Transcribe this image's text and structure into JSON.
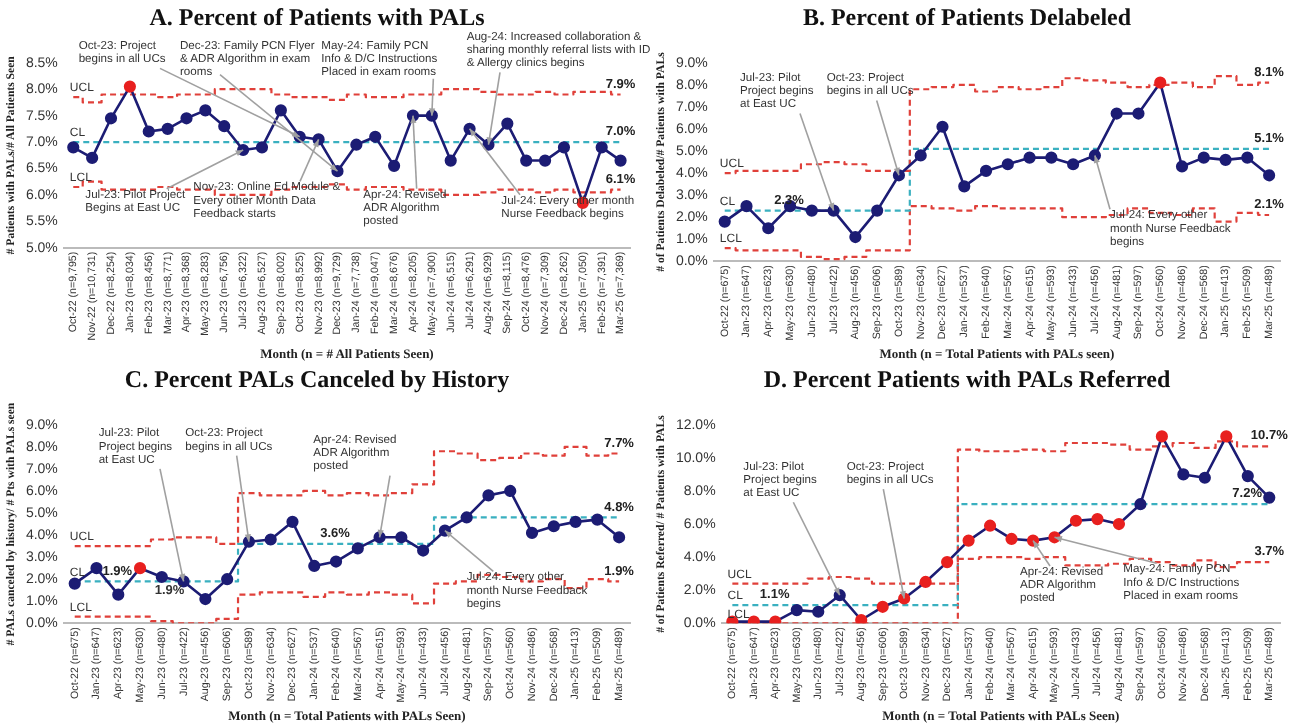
{
  "chart_data": [
    {
      "type": "line",
      "title": "A. Percent of Patients with PALs",
      "xlabel": "Month (n = # All Patients Seen)",
      "ylabel": "# Patients with PALs/# All Patients Seen",
      "legend": false,
      "grid": false,
      "categories": [
        "Oct-22 (n=9,795)",
        "Nov-22 (n=10,731)",
        "Dec-22 (n=8,254)",
        "Jan-23 (n=8,034)",
        "Feb-23 (n=8,456)",
        "Mar-23 (n=8,771)",
        "Apr-23 (n=8,368)",
        "May-23 (n=8,283)",
        "Jun-23 (n=6,756)",
        "Jul-23 (n=6,322)",
        "Aug-23 (n=6,527)",
        "Sep-23 (n=8,002)",
        "Oct-23 (n=8,525)",
        "Nov-23 (n=8,992)",
        "Dec-23 (n=9,729)",
        "Jan-24 (n=7,738)",
        "Feb-24 (n=9,047)",
        "Mar-24 (n=8,676)",
        "Apr-24 (n=8,205)",
        "May-24 (n=7,900)",
        "Jun-24 (n=6,515)",
        "Jul-24 (n=6,291)",
        "Aug-24 (n=6,929)",
        "Sep-24 (n=8,115)",
        "Oct-24 (n=8,476)",
        "Nov-24 (n=7,309)",
        "Dec-24 (n=8,262)",
        "Jan-25 (n=7,050)",
        "Feb-25 (n=7,391)",
        "Mar-25 (n=7,369)"
      ],
      "ylim": [
        5,
        8.5
      ],
      "yticks": [
        {
          "value": 5,
          "label": "5.0%"
        },
        {
          "value": 5.5,
          "label": "5.5%"
        },
        {
          "value": 6,
          "label": "6.0%"
        },
        {
          "value": 6.5,
          "label": "6.5%"
        },
        {
          "value": 7,
          "label": "7.0%"
        },
        {
          "value": 7.5,
          "label": "7.5%"
        },
        {
          "value": 8,
          "label": "8.0%"
        },
        {
          "value": 8.5,
          "label": "8.5%"
        }
      ],
      "series": [
        {
          "color": "#1c1c74",
          "marker": "circle",
          "values": [
            6.9,
            6.7,
            7.45,
            8.05,
            7.2,
            7.25,
            7.45,
            7.6,
            7.3,
            6.85,
            6.9,
            7.6,
            7.1,
            7.05,
            6.45,
            6.95,
            7.1,
            6.55,
            7.5,
            7.5,
            6.65,
            7.25,
            6.95,
            7.35,
            6.65,
            6.65,
            6.9,
            5.85,
            6.9,
            6.65
          ],
          "colors": [
            "#1c1c74",
            "#1c1c74",
            "#1c1c74",
            "#e8201f",
            "#1c1c74",
            "#1c1c74",
            "#1c1c74",
            "#1c1c74",
            "#1c1c74",
            "#1c1c74",
            "#1c1c74",
            "#1c1c74",
            "#1c1c74",
            "#1c1c74",
            "#1c1c74",
            "#1c1c74",
            "#1c1c74",
            "#1c1c74",
            "#1c1c74",
            "#1c1c74",
            "#1c1c74",
            "#1c1c74",
            "#1c1c74",
            "#1c1c74",
            "#1c1c74",
            "#1c1c74",
            "#1c1c74",
            "#e8201f",
            "#1c1c74",
            "#1c1c74"
          ]
        },
        {
          "type": "step",
          "name": "UCL",
          "color": "#e0403a",
          "line_style": "dashed",
          "values": [
            7.85,
            7.75,
            7.9,
            7.9,
            7.9,
            7.85,
            7.9,
            7.9,
            8.0,
            8.0,
            8.0,
            7.9,
            7.85,
            7.85,
            7.8,
            7.9,
            7.85,
            7.85,
            7.9,
            7.9,
            8.0,
            8.0,
            7.95,
            7.9,
            7.9,
            7.95,
            7.9,
            7.95,
            7.95,
            7.9
          ],
          "value_labels": [
            null,
            null,
            null,
            null,
            null,
            null,
            null,
            null,
            null,
            null,
            null,
            null,
            null,
            null,
            null,
            null,
            null,
            null,
            null,
            null,
            null,
            null,
            null,
            null,
            null,
            null,
            null,
            null,
            null,
            "7.9%"
          ]
        },
        {
          "type": "step",
          "name": "CL",
          "color": "#3ab0c0",
          "line_style": "dashed",
          "values": [
            7.0,
            7.0,
            7.0,
            7.0,
            7.0,
            7.0,
            7.0,
            7.0,
            7.0,
            7.0,
            7.0,
            7.0,
            7.0,
            7.0,
            7.0,
            7.0,
            7.0,
            7.0,
            7.0,
            7.0,
            7.0,
            7.0,
            7.0,
            7.0,
            7.0,
            7.0,
            7.0,
            7.0,
            7.0,
            7.0
          ],
          "value_labels": [
            null,
            null,
            null,
            null,
            null,
            null,
            null,
            null,
            null,
            null,
            null,
            null,
            null,
            null,
            null,
            null,
            null,
            null,
            null,
            null,
            null,
            null,
            null,
            null,
            null,
            null,
            null,
            null,
            null,
            "7.0%"
          ]
        },
        {
          "type": "step",
          "name": "LCL",
          "color": "#e0403a",
          "line_style": "dashed",
          "values": [
            6.15,
            6.25,
            6.1,
            6.1,
            6.1,
            6.15,
            6.1,
            6.1,
            6.0,
            6.0,
            6.0,
            6.1,
            6.15,
            6.15,
            6.2,
            6.1,
            6.15,
            6.15,
            6.1,
            6.1,
            6.0,
            6.0,
            6.05,
            6.1,
            6.1,
            6.05,
            6.1,
            6.05,
            6.05,
            6.1
          ],
          "value_labels": [
            null,
            null,
            null,
            null,
            null,
            null,
            null,
            null,
            null,
            null,
            null,
            null,
            null,
            null,
            null,
            null,
            null,
            null,
            null,
            null,
            null,
            null,
            null,
            null,
            null,
            null,
            null,
            null,
            null,
            "6.1%"
          ]
        }
      ],
      "annotations": [
        {
          "text": "Oct-23: Project begins in all UCs",
          "x": "Oct-23 (n=8,525)",
          "y": 7.1
        },
        {
          "text": "Dec-23: Family PCN Flyer & ADR Algorithm in exam rooms",
          "x": "Dec-23 (n=9,729)",
          "y": 6.45
        },
        {
          "text": "May-24: Family PCN Info & D/C Instructions Placed in exam rooms",
          "x": "May-24 (n=7,900)",
          "y": 7.5
        },
        {
          "text": "Aug-24: Increased collaboration & sharing monthly referral lists with ID & Allergy clinics begins",
          "x": "Aug-24 (n=6,929)",
          "y": 6.95
        },
        {
          "text": "Jul-23: Pilot Project Begins at East UC",
          "x": "Jul-23 (n=6,322)",
          "y": 6.85
        },
        {
          "text": "Nov-23: Online Ed Module & Every other Month Data Feedback starts",
          "x": "Nov-23 (n=8,992)",
          "y": 7.05
        },
        {
          "text": "Apr-24: Revised ADR Algorithm posted",
          "x": "Apr-24 (n=8,205)",
          "y": 7.5
        },
        {
          "text": "Jul-24: Every other month Nurse Feedback begins",
          "x": "Jul-24 (n=6,291)",
          "y": 7.25
        }
      ]
    },
    {
      "type": "line",
      "title": "B. Percent of Patients Delabeled",
      "xlabel": "Month (n = Total Patients with PALs seen)",
      "ylabel": "# of Patients Delabeled/# Patients with PALs",
      "legend": false,
      "grid": false,
      "categories": [
        "Oct-22 (n=675)",
        "Jan-23 (n=647)",
        "Apr-23 (n=623)",
        "May-23 (n=630)",
        "Jun-23 (n=480)",
        "Jul-23 (n=422)",
        "Aug-23 (n=456)",
        "Sep-23 (n=606)",
        "Oct-23 (n=589)",
        "Nov-23 (n=634)",
        "Dec-23 (n=627)",
        "Jan-24 (n=537)",
        "Feb-24 (n=640)",
        "Mar-24 (n=567)",
        "Apr-24 (n=615)",
        "May-24 (n=593)",
        "Jun-24 (n=433)",
        "Jul-24 (n=456)",
        "Aug-24 (n=481)",
        "Sep-24 (n=597)",
        "Oct-24 (n=560)",
        "Nov-24 (n=486)",
        "Dec-24 (n=568)",
        "Jan-25 (n=413)",
        "Feb-25 (n=509)",
        "Mar-25 (n=489)"
      ],
      "ylim": [
        0,
        9
      ],
      "yticks": [
        {
          "value": 0,
          "label": "0.0%"
        },
        {
          "value": 1,
          "label": "1.0%"
        },
        {
          "value": 2,
          "label": "2.0%"
        },
        {
          "value": 3,
          "label": "3.0%"
        },
        {
          "value": 4,
          "label": "4.0%"
        },
        {
          "value": 5,
          "label": "5.0%"
        },
        {
          "value": 6,
          "label": "6.0%"
        },
        {
          "value": 7,
          "label": "7.0%"
        },
        {
          "value": 8,
          "label": "8.0%"
        },
        {
          "value": 9,
          "label": "9.0%"
        }
      ],
      "series": [
        {
          "color": "#1c1c74",
          "marker": "circle",
          "values": [
            1.8,
            2.5,
            1.5,
            2.5,
            2.3,
            2.3,
            1.1,
            2.3,
            3.9,
            4.8,
            6.1,
            3.4,
            4.1,
            4.4,
            4.7,
            4.7,
            4.4,
            4.8,
            6.7,
            6.7,
            8.1,
            4.3,
            4.7,
            4.6,
            4.7,
            3.9
          ],
          "colors": [
            "#1c1c74",
            "#1c1c74",
            "#1c1c74",
            "#1c1c74",
            "#1c1c74",
            "#1c1c74",
            "#1c1c74",
            "#1c1c74",
            "#1c1c74",
            "#1c1c74",
            "#1c1c74",
            "#1c1c74",
            "#1c1c74",
            "#1c1c74",
            "#1c1c74",
            "#1c1c74",
            "#1c1c74",
            "#1c1c74",
            "#1c1c74",
            "#1c1c74",
            "#e8201f",
            "#1c1c74",
            "#1c1c74",
            "#1c1c74",
            "#1c1c74",
            "#1c1c74"
          ]
        },
        {
          "type": "step",
          "name": "UCL",
          "color": "#e0403a",
          "line_style": "dashed",
          "values": [
            4.0,
            4.1,
            4.1,
            4.1,
            4.4,
            4.5,
            4.4,
            4.1,
            4.1,
            7.8,
            7.9,
            8.0,
            7.7,
            7.9,
            7.8,
            7.9,
            8.3,
            8.2,
            8.1,
            7.9,
            8.0,
            8.1,
            7.9,
            8.4,
            8.0,
            8.1
          ],
          "value_labels": [
            null,
            null,
            null,
            null,
            null,
            null,
            null,
            null,
            null,
            null,
            null,
            null,
            null,
            null,
            null,
            null,
            null,
            null,
            null,
            null,
            null,
            null,
            null,
            null,
            null,
            "8.1%"
          ]
        },
        {
          "type": "step",
          "name": "CL",
          "color": "#3ab0c0",
          "line_style": "dashed",
          "values": [
            2.3,
            2.3,
            2.3,
            2.3,
            2.3,
            2.3,
            2.3,
            2.3,
            2.3,
            5.1,
            5.1,
            5.1,
            5.1,
            5.1,
            5.1,
            5.1,
            5.1,
            5.1,
            5.1,
            5.1,
            5.1,
            5.1,
            5.1,
            5.1,
            5.1,
            5.1
          ],
          "value_labels": [
            null,
            null,
            "2.3%",
            null,
            null,
            null,
            null,
            null,
            null,
            null,
            null,
            null,
            null,
            null,
            null,
            null,
            null,
            null,
            null,
            null,
            null,
            null,
            null,
            null,
            null,
            "5.1%"
          ]
        },
        {
          "type": "step",
          "name": "LCL",
          "color": "#e0403a",
          "line_style": "dashed",
          "values": [
            0.6,
            0.5,
            0.5,
            0.5,
            0.2,
            0.1,
            0.2,
            0.5,
            0.5,
            2.5,
            2.4,
            2.3,
            2.5,
            2.4,
            2.4,
            2.4,
            2.0,
            2.0,
            2.1,
            2.4,
            2.2,
            2.1,
            2.4,
            1.8,
            2.2,
            2.1
          ],
          "value_labels": [
            null,
            null,
            null,
            null,
            null,
            null,
            null,
            null,
            null,
            null,
            null,
            null,
            null,
            null,
            null,
            null,
            null,
            null,
            null,
            null,
            null,
            null,
            null,
            null,
            null,
            "2.1%"
          ]
        }
      ],
      "annotations": [
        {
          "text": "Jul-23: Pilot Project begins at East UC",
          "x": "Jul-23 (n=422)",
          "y": 2.3
        },
        {
          "text": "Oct-23: Project begins in all UCs",
          "x": "Oct-23 (n=589)",
          "y": 3.9
        },
        {
          "text": "Jul-24: Every other month Nurse Feedback begins",
          "x": "Jul-24 (n=456)",
          "y": 4.8
        }
      ]
    },
    {
      "type": "line",
      "title": "C. Percent PALs Canceled by History",
      "xlabel": "Month (n = Total Patients with PALs Seen)",
      "ylabel": "# PALs canceled by history/ # Pts with PALs seen",
      "legend": false,
      "grid": false,
      "categories": [
        "Oct-22 (n=675)",
        "Jan-23 (n=647)",
        "Apr-23 (n=623)",
        "May-23 (n=630)",
        "Jun-23 (n=480)",
        "Jul-23 (n=422)",
        "Aug-23 (n=456)",
        "Sep-23 (n=606)",
        "Oct-23 (n=589)",
        "Nov-23 (n=634)",
        "Dec-23 (n=627)",
        "Jan-24 (n=537)",
        "Feb-24 (n=640)",
        "Mar-24 (n=567)",
        "Apr-24 (n=615)",
        "May-24 (n=593)",
        "Jun-24 (n=433)",
        "Jul-24 (n=456)",
        "Aug-24 (n=481)",
        "Sep-24 (n=597)",
        "Oct-24 (n=560)",
        "Nov-24 (n=486)",
        "Dec-24 (n=568)",
        "Jan-25 (n=413)",
        "Feb-25 (n=509)",
        "Mar-25 (n=489)"
      ],
      "ylim": [
        0,
        9
      ],
      "yticks": [
        {
          "value": 0,
          "label": "0.0%"
        },
        {
          "value": 1,
          "label": "1.0%"
        },
        {
          "value": 2,
          "label": "2.0%"
        },
        {
          "value": 3,
          "label": "3.0%"
        },
        {
          "value": 4,
          "label": "4.0%"
        },
        {
          "value": 5,
          "label": "5.0%"
        },
        {
          "value": 6,
          "label": "6.0%"
        },
        {
          "value": 7,
          "label": "7.0%"
        },
        {
          "value": 8,
          "label": "8.0%"
        },
        {
          "value": 9,
          "label": "9.0%"
        }
      ],
      "series": [
        {
          "color": "#1c1c74",
          "marker": "circle",
          "values": [
            1.8,
            2.5,
            1.3,
            2.5,
            2.1,
            1.9,
            1.1,
            2.0,
            3.7,
            3.8,
            4.6,
            2.6,
            2.8,
            3.4,
            3.9,
            3.9,
            3.3,
            4.2,
            4.8,
            5.8,
            6.0,
            4.1,
            4.4,
            4.6,
            4.7,
            3.9
          ],
          "colors": [
            "#1c1c74",
            "#1c1c74",
            "#1c1c74",
            "#e8201f",
            "#1c1c74",
            "#1c1c74",
            "#1c1c74",
            "#1c1c74",
            "#1c1c74",
            "#1c1c74",
            "#1c1c74",
            "#1c1c74",
            "#1c1c74",
            "#1c1c74",
            "#1c1c74",
            "#1c1c74",
            "#1c1c74",
            "#1c1c74",
            "#1c1c74",
            "#1c1c74",
            "#1c1c74",
            "#1c1c74",
            "#1c1c74",
            "#1c1c74",
            "#1c1c74",
            "#1c1c74"
          ]
        },
        {
          "type": "step",
          "name": "UCL",
          "color": "#e0403a",
          "line_style": "dashed",
          "values": [
            3.5,
            3.5,
            3.5,
            3.5,
            3.8,
            3.9,
            3.9,
            3.6,
            5.9,
            5.8,
            5.8,
            6.0,
            5.8,
            5.9,
            5.8,
            5.9,
            6.3,
            7.8,
            7.7,
            7.4,
            7.5,
            7.7,
            7.6,
            8.0,
            7.6,
            7.7
          ],
          "value_labels": [
            null,
            null,
            null,
            null,
            null,
            null,
            null,
            null,
            null,
            null,
            null,
            null,
            null,
            null,
            null,
            null,
            null,
            null,
            null,
            null,
            null,
            null,
            null,
            null,
            null,
            "7.7%"
          ]
        },
        {
          "type": "step",
          "name": "CL",
          "color": "#3ab0c0",
          "line_style": "dashed",
          "values": [
            1.9,
            1.9,
            1.9,
            1.9,
            1.9,
            1.9,
            1.9,
            1.9,
            3.6,
            3.6,
            3.6,
            3.6,
            3.6,
            3.6,
            3.6,
            3.6,
            3.6,
            4.8,
            4.8,
            4.8,
            4.8,
            4.8,
            4.8,
            4.8,
            4.8,
            4.8
          ],
          "value_labels": [
            null,
            "1.9%",
            null,
            null,
            null,
            null,
            null,
            null,
            null,
            null,
            null,
            "3.6%",
            null,
            null,
            null,
            null,
            null,
            null,
            null,
            null,
            null,
            null,
            null,
            null,
            null,
            "4.8%"
          ]
        },
        {
          "type": "step",
          "name": "LCL",
          "color": "#e0403a",
          "line_style": "dashed",
          "values": [
            0.3,
            0.3,
            0.3,
            0.3,
            0.1,
            0.0,
            0.0,
            0.2,
            1.3,
            1.4,
            1.4,
            1.2,
            1.4,
            1.3,
            1.4,
            1.3,
            0.9,
            1.8,
            1.9,
            2.2,
            2.1,
            1.9,
            2.0,
            1.6,
            2.0,
            1.9
          ],
          "value_labels": [
            null,
            null,
            null,
            null,
            null,
            null,
            null,
            null,
            null,
            null,
            null,
            null,
            null,
            null,
            null,
            null,
            null,
            null,
            null,
            null,
            null,
            null,
            null,
            null,
            null,
            "1.9%"
          ]
        }
      ],
      "annotations": [
        {
          "text": "Jul-23: Pilot Project begins at East UC",
          "x": "Jul-23 (n=422)",
          "y": 1.9
        },
        {
          "text": "Oct-23: Project begins in all UCs",
          "x": "Oct-23 (n=589)",
          "y": 3.7
        },
        {
          "text": "Apr-24: Revised ADR Algorithm posted",
          "x": "Apr-24 (n=615)",
          "y": 3.9
        },
        {
          "text": "Jul-24: Every other month Nurse Feedback begins",
          "x": "Jul-24 (n=456)",
          "y": 4.2
        },
        "1.9%"
      ]
    },
    {
      "type": "line",
      "title": "D. Percent Patients with PALs Referred",
      "xlabel": "Month (n = Total Patients with PALs Seen)",
      "ylabel": "# of Patients Referred/ # Patients with PALs",
      "legend": false,
      "grid": false,
      "categories": [
        "Oct-22 (n=675)",
        "Jan-23 (n=647)",
        "Apr-23 (n=623)",
        "May-23 (n=630)",
        "Jun-23 (n=480)",
        "Jul-23 (n=422)",
        "Aug-23 (n=456)",
        "Sep-23 (n=606)",
        "Oct-23 (n=589)",
        "Nov-23 (n=634)",
        "Dec-23 (n=627)",
        "Jan-24 (n=537)",
        "Feb-24 (n=640)",
        "Mar-24 (n=567)",
        "Apr-24 (n=615)",
        "May-24 (n=593)",
        "Jun-24 (n=433)",
        "Jul-24 (n=456)",
        "Aug-24 (n=481)",
        "Sep-24 (n=597)",
        "Oct-24 (n=560)",
        "Nov-24 (n=486)",
        "Dec-24 (n=568)",
        "Jan-25 (n=413)",
        "Feb-25 (n=509)",
        "Mar-25 (n=489)"
      ],
      "ylim": [
        0,
        12
      ],
      "yticks": [
        {
          "value": 0,
          "label": "0.0%"
        },
        {
          "value": 2,
          "label": "2.0%"
        },
        {
          "value": 4,
          "label": "4.0%"
        },
        {
          "value": 6,
          "label": "6.0%"
        },
        {
          "value": 8,
          "label": "8.0%"
        },
        {
          "value": 10,
          "label": "10.0%"
        },
        {
          "value": 12,
          "label": "12.0%"
        }
      ],
      "series": [
        {
          "color": "#1c1c74",
          "marker": "circle",
          "values": [
            0.1,
            0.1,
            0.1,
            0.8,
            0.7,
            1.7,
            0.2,
            1.0,
            1.5,
            2.5,
            3.7,
            5.0,
            5.9,
            5.1,
            5.0,
            5.2,
            6.2,
            6.3,
            6.0,
            7.2,
            11.3,
            9.0,
            8.8,
            11.3,
            8.9,
            7.6
          ],
          "colors": [
            "#e8201f",
            "#e8201f",
            "#e8201f",
            "#1c1c74",
            "#1c1c74",
            "#1c1c74",
            "#e8201f",
            "#e8201f",
            "#e8201f",
            "#e8201f",
            "#e8201f",
            "#e8201f",
            "#e8201f",
            "#e8201f",
            "#e8201f",
            "#e8201f",
            "#e8201f",
            "#e8201f",
            "#e8201f",
            "#1c1c74",
            "#e8201f",
            "#1c1c74",
            "#1c1c74",
            "#e8201f",
            "#1c1c74",
            "#1c1c74"
          ]
        },
        {
          "type": "step",
          "name": "UCL",
          "color": "#e0403a",
          "line_style": "dashed",
          "values": [
            2.4,
            2.4,
            2.4,
            2.4,
            2.7,
            2.8,
            2.7,
            2.4,
            2.4,
            2.4,
            2.4,
            10.5,
            10.4,
            10.4,
            10.5,
            10.4,
            10.9,
            10.9,
            10.8,
            10.5,
            10.7,
            10.9,
            10.6,
            11.0,
            10.7,
            10.7
          ],
          "value_labels": [
            null,
            null,
            null,
            null,
            null,
            null,
            null,
            null,
            null,
            null,
            null,
            null,
            null,
            null,
            null,
            null,
            null,
            null,
            null,
            null,
            null,
            null,
            null,
            null,
            null,
            "10.7%"
          ]
        },
        {
          "type": "step",
          "name": "CL",
          "color": "#3ab0c0",
          "line_style": "dashed",
          "values": [
            1.1,
            1.1,
            1.1,
            1.1,
            1.1,
            1.1,
            1.1,
            1.1,
            1.1,
            1.1,
            1.1,
            7.2,
            7.2,
            7.2,
            7.2,
            7.2,
            7.2,
            7.2,
            7.2,
            7.2,
            7.2,
            7.2,
            7.2,
            7.2,
            7.2,
            7.2
          ],
          "value_labels": [
            null,
            "1.1%",
            null,
            null,
            null,
            null,
            null,
            null,
            null,
            null,
            null,
            null,
            null,
            null,
            null,
            null,
            null,
            null,
            null,
            null,
            null,
            null,
            null,
            "7.2%",
            null,
            null
          ]
        },
        {
          "type": "step",
          "name": "LCL",
          "color": "#e0403a",
          "line_style": "dashed",
          "values": [
            0,
            0,
            0,
            0,
            0,
            0,
            0,
            0,
            0,
            0,
            0,
            3.9,
            4.0,
            4.0,
            3.9,
            4.0,
            3.5,
            3.5,
            3.6,
            3.9,
            3.7,
            3.5,
            3.8,
            3.4,
            3.7,
            3.7
          ],
          "value_labels": [
            null,
            null,
            null,
            null,
            null,
            null,
            null,
            null,
            null,
            null,
            null,
            null,
            null,
            null,
            null,
            null,
            null,
            null,
            null,
            null,
            null,
            null,
            null,
            null,
            null,
            "3.7%"
          ]
        }
      ],
      "annotations": [
        {
          "text": "Jul-23: Pilot Project begins at East UC",
          "x": "Jul-23 (n=422)",
          "y": 1.7
        },
        {
          "text": "Oct-23: Project begins in all UCs",
          "x": "Oct-23 (n=589)",
          "y": 1.5
        },
        {
          "text": "Apr-24: Revised ADR Algorithm posted",
          "x": "Apr-24 (n=615)",
          "y": 5.0
        },
        {
          "text": "May-24: Family PCN Info & D/C Instructions Placed in exam rooms",
          "x": "May-24 (n=593)",
          "y": 5.2
        }
      ]
    }
  ]
}
